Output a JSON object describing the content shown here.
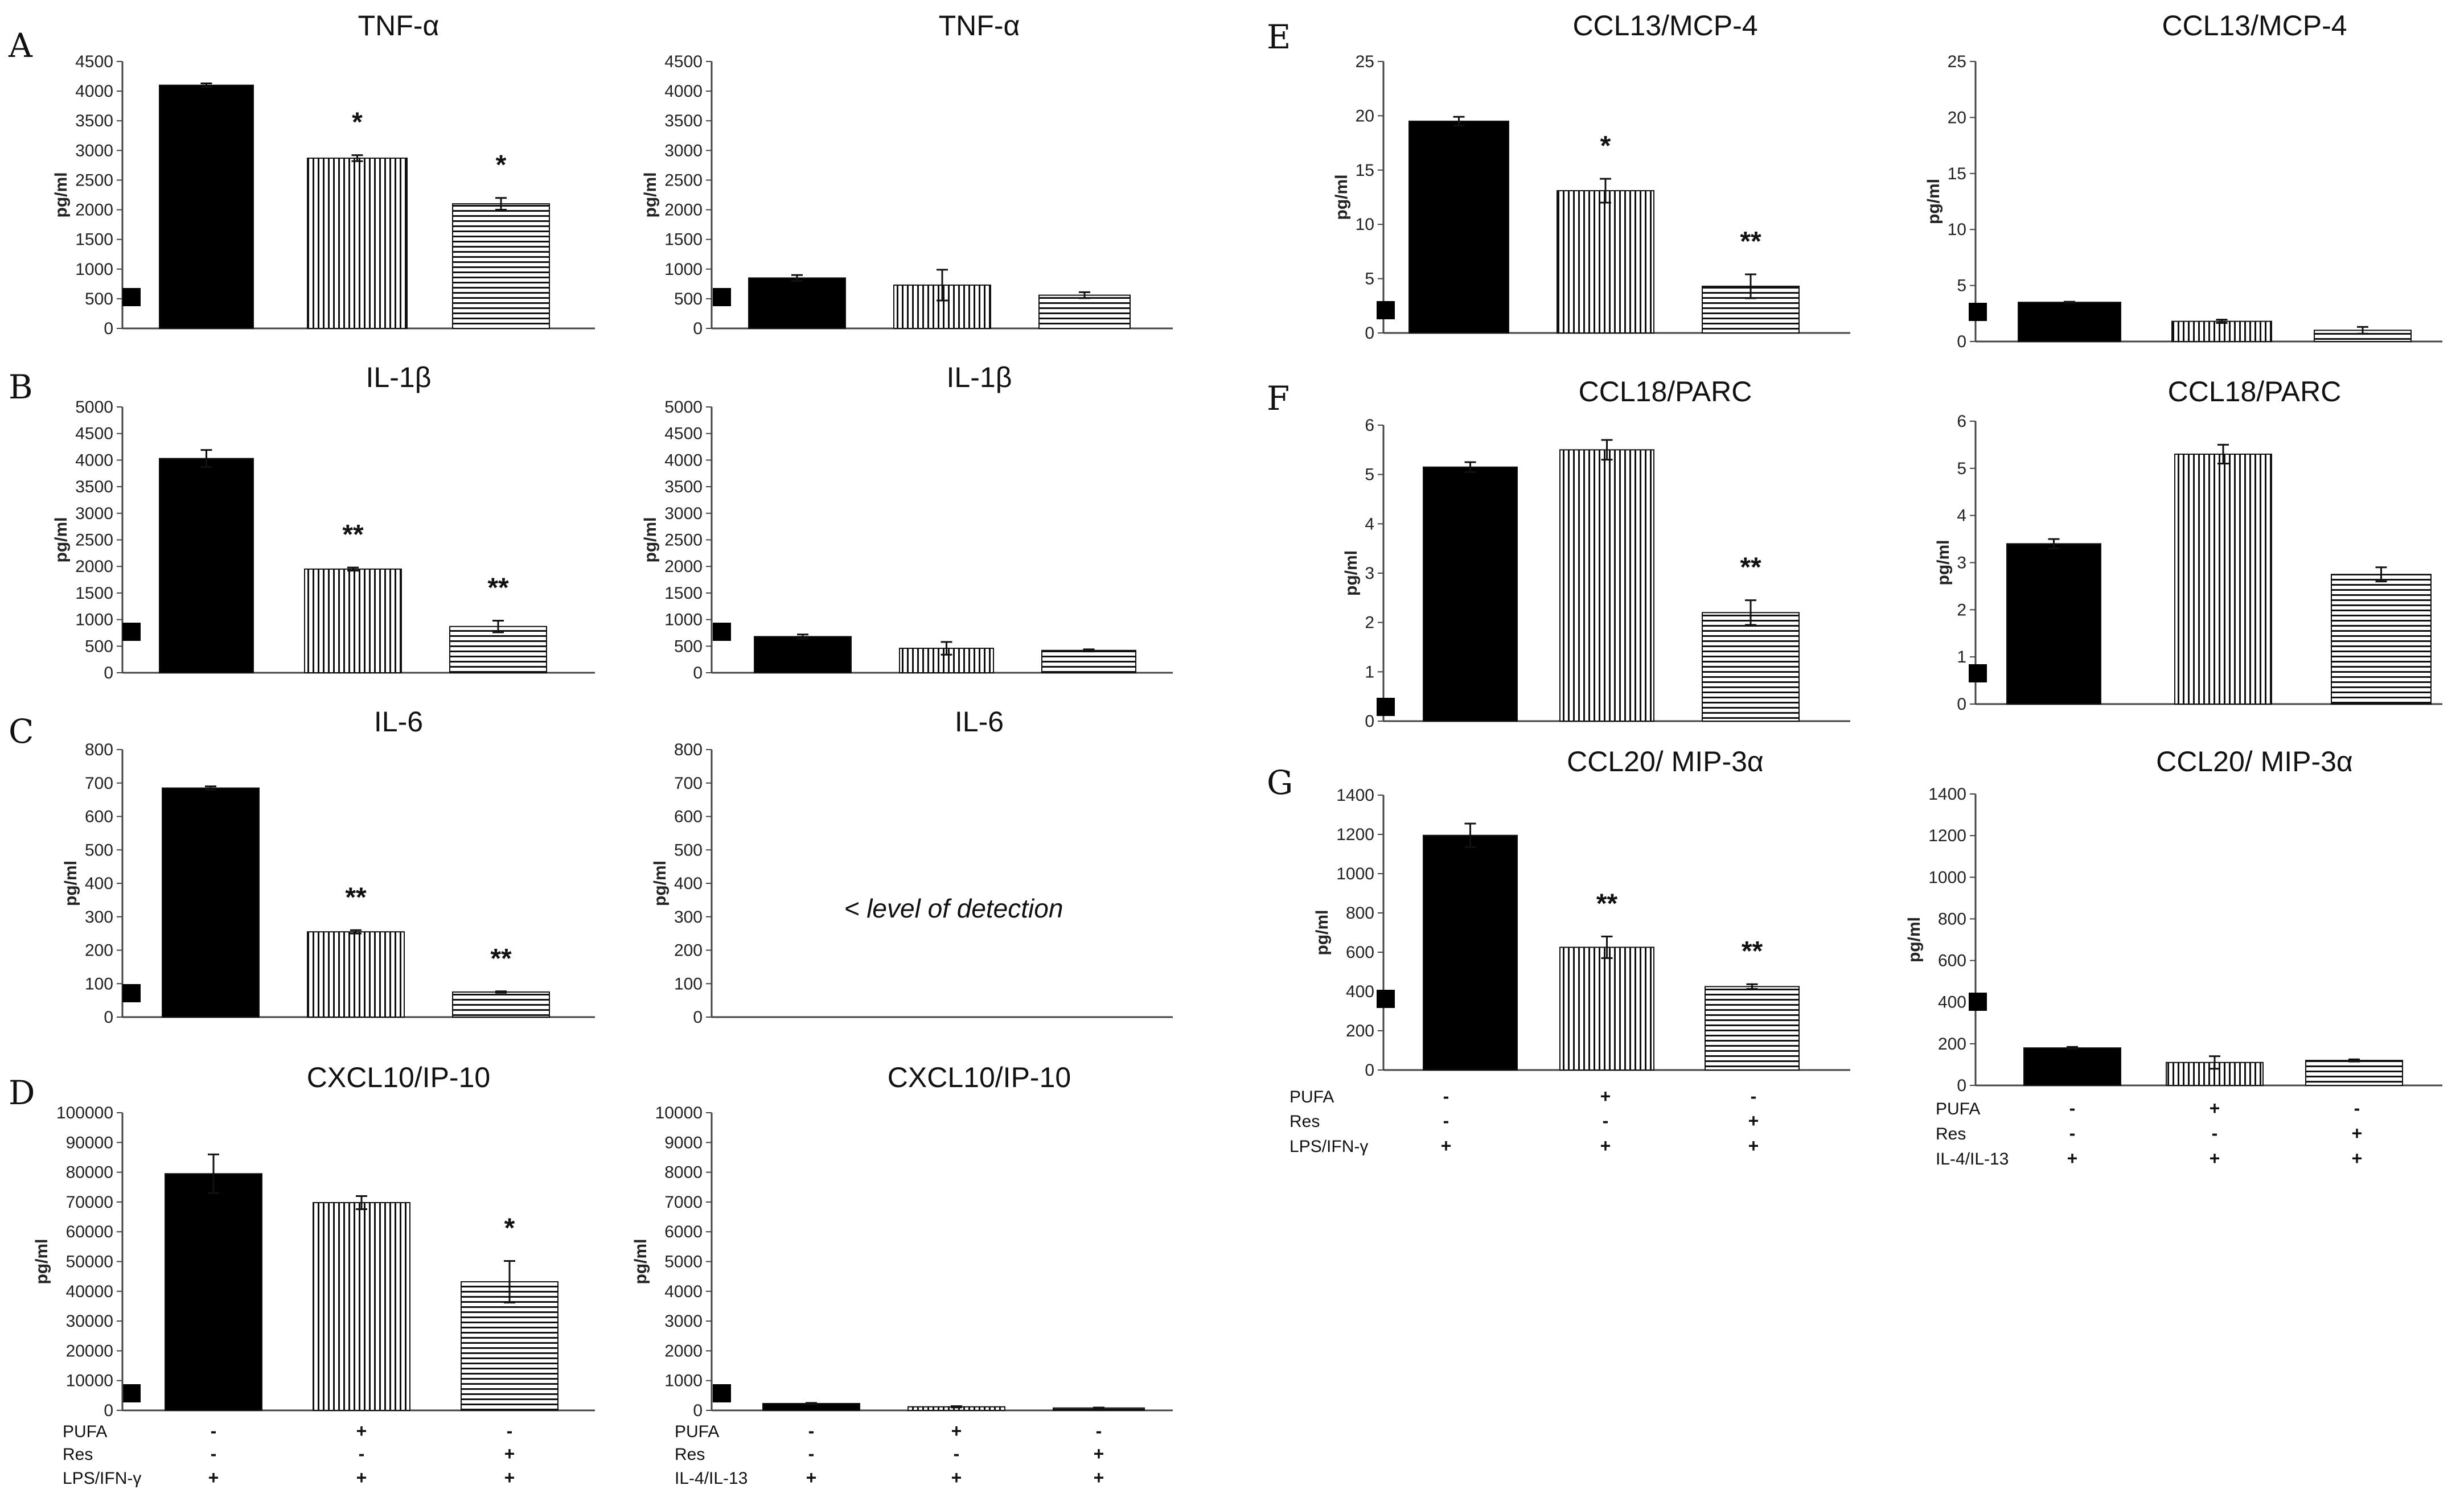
{
  "panels": [
    {
      "letter": "A"
    },
    {
      "letter": "B"
    },
    {
      "letter": "C"
    },
    {
      "letter": "D"
    },
    {
      "letter": "E"
    },
    {
      "letter": "F"
    },
    {
      "letter": "G"
    }
  ],
  "colors": {
    "bar_edge": "#111111",
    "bar_fill": "#000000",
    "background": "#ffffff"
  },
  "patterns": [
    "solid-black",
    "vertical-stripes",
    "horizontal-stripes"
  ],
  "condition_tables": [
    {
      "rows": [
        {
          "label": "PUFA",
          "marks": [
            "-",
            "+",
            "-"
          ]
        },
        {
          "label": "Res",
          "marks": [
            "-",
            "-",
            "+"
          ]
        },
        {
          "label": "LPS/IFN-γ",
          "marks": [
            "+",
            "+",
            "+"
          ]
        }
      ]
    },
    {
      "rows": [
        {
          "label": "PUFA",
          "marks": [
            "-",
            "+",
            "-"
          ]
        },
        {
          "label": "Res",
          "marks": [
            "-",
            "-",
            "+"
          ]
        },
        {
          "label": "IL-4/IL-13",
          "marks": [
            "+",
            "+",
            "+"
          ]
        }
      ]
    },
    {
      "rows": [
        {
          "label": "PUFA",
          "marks": [
            "-",
            "+",
            "-"
          ]
        },
        {
          "label": "Res",
          "marks": [
            "-",
            "-",
            "+"
          ]
        },
        {
          "label": "LPS/IFN-γ",
          "marks": [
            "+",
            "+",
            "+"
          ]
        }
      ]
    },
    {
      "rows": [
        {
          "label": "PUFA",
          "marks": [
            "-",
            "+",
            "-"
          ]
        },
        {
          "label": "Res",
          "marks": [
            "-",
            "-",
            "+"
          ]
        },
        {
          "label": "IL-4/IL-13",
          "marks": [
            "+",
            "+",
            "+"
          ]
        }
      ]
    }
  ],
  "chart_data": [
    {
      "type": "bar",
      "title": "TNF-α",
      "ylabel": "pg/ml",
      "ylim": [
        0,
        4500
      ],
      "yticks": [
        0,
        500,
        1000,
        1500,
        2000,
        2500,
        3000,
        3500,
        4000,
        4500
      ],
      "values": [
        4100,
        2870,
        2100
      ],
      "errors": [
        30,
        50,
        100
      ],
      "significance": [
        "",
        "*",
        "*"
      ],
      "note": ""
    },
    {
      "type": "bar",
      "title": "TNF-α",
      "ylabel": "pg/ml",
      "ylim": [
        0,
        4500
      ],
      "yticks": [
        0,
        500,
        1000,
        1500,
        2000,
        2500,
        3000,
        3500,
        4000,
        4500
      ],
      "values": [
        850,
        730,
        560
      ],
      "errors": [
        50,
        260,
        50
      ],
      "significance": [
        "",
        "",
        ""
      ],
      "note": ""
    },
    {
      "type": "bar",
      "title": "IL-1β",
      "ylabel": "pg/ml",
      "ylim": [
        0,
        5000
      ],
      "yticks": [
        0,
        500,
        1000,
        1500,
        2000,
        2500,
        3000,
        3500,
        4000,
        4500,
        5000
      ],
      "values": [
        4030,
        1950,
        870
      ],
      "errors": [
        160,
        30,
        110
      ],
      "significance": [
        "",
        "**",
        "**"
      ],
      "note": ""
    },
    {
      "type": "bar",
      "title": "IL-1β",
      "ylabel": "pg/ml",
      "ylim": [
        0,
        5000
      ],
      "yticks": [
        0,
        500,
        1000,
        1500,
        2000,
        2500,
        3000,
        3500,
        4000,
        4500,
        5000
      ],
      "values": [
        680,
        460,
        420
      ],
      "errors": [
        40,
        120,
        20
      ],
      "significance": [
        "",
        "",
        ""
      ],
      "note": ""
    },
    {
      "type": "bar",
      "title": "IL-6",
      "ylabel": "pg/ml",
      "ylim": [
        0,
        800
      ],
      "yticks": [
        0,
        100,
        200,
        300,
        400,
        500,
        600,
        700,
        800
      ],
      "values": [
        685,
        255,
        75
      ],
      "errors": [
        5,
        5,
        2
      ],
      "significance": [
        "",
        "**",
        "**"
      ],
      "note": ""
    },
    {
      "type": "bar",
      "title": "IL-6",
      "ylabel": "pg/ml",
      "ylim": [
        0,
        800
      ],
      "yticks": [
        0,
        100,
        200,
        300,
        400,
        500,
        600,
        700,
        800
      ],
      "values": [],
      "errors": [],
      "significance": [],
      "note": "< level of detection"
    },
    {
      "type": "bar",
      "title": "CXCL10/IP-10",
      "ylabel": "pg/ml",
      "ylim": [
        0,
        100000
      ],
      "yticks": [
        0,
        10000,
        20000,
        30000,
        40000,
        50000,
        60000,
        70000,
        80000,
        90000,
        100000
      ],
      "values": [
        79500,
        69800,
        43200
      ],
      "errors": [
        6500,
        2200,
        7000
      ],
      "significance": [
        "",
        "",
        "*"
      ],
      "note": ""
    },
    {
      "type": "bar",
      "title": "CXCL10/IP-10",
      "ylabel": "pg/ml",
      "ylim": [
        0,
        10000
      ],
      "yticks": [
        0,
        1000,
        2000,
        3000,
        4000,
        5000,
        6000,
        7000,
        8000,
        9000,
        10000
      ],
      "values": [
        230,
        120,
        80
      ],
      "errors": [
        20,
        20,
        15
      ],
      "significance": [
        "",
        "",
        ""
      ],
      "note": ""
    },
    {
      "type": "bar",
      "title": "CCL13/MCP-4",
      "ylabel": "pg/ml",
      "ylim": [
        0,
        25
      ],
      "yticks": [
        0,
        5,
        10,
        15,
        20,
        25
      ],
      "values": [
        19.5,
        13.1,
        4.3
      ],
      "errors": [
        0.4,
        1.1,
        1.1
      ],
      "significance": [
        "",
        "*",
        "**"
      ],
      "note": ""
    },
    {
      "type": "bar",
      "title": "CCL13/MCP-4",
      "ylabel": "pg/ml",
      "ylim": [
        0,
        25
      ],
      "yticks": [
        0,
        5,
        10,
        15,
        20,
        25
      ],
      "values": [
        3.5,
        1.8,
        1.0
      ],
      "errors": [
        0.05,
        0.15,
        0.3
      ],
      "significance": [
        "",
        "",
        ""
      ],
      "note": ""
    },
    {
      "type": "bar",
      "title": "CCL18/PARC",
      "ylabel": "pg/ml",
      "ylim": [
        0,
        6
      ],
      "yticks": [
        0,
        1,
        2,
        3,
        4,
        5,
        6
      ],
      "values": [
        5.15,
        5.5,
        2.2
      ],
      "errors": [
        0.1,
        0.2,
        0.25
      ],
      "significance": [
        "",
        "",
        "**"
      ],
      "note": ""
    },
    {
      "type": "bar",
      "title": "CCL18/PARC",
      "ylabel": "pg/ml",
      "ylim": [
        0,
        6
      ],
      "yticks": [
        0,
        1,
        2,
        3,
        4,
        5,
        6
      ],
      "values": [
        3.4,
        5.3,
        2.75
      ],
      "errors": [
        0.1,
        0.2,
        0.15
      ],
      "significance": [
        "",
        "",
        ""
      ],
      "note": ""
    },
    {
      "type": "bar",
      "title": "CCL20/ MIP-3α",
      "ylabel": "pg/ml",
      "ylim": [
        0,
        1400
      ],
      "yticks": [
        0,
        200,
        400,
        600,
        800,
        1000,
        1200,
        1400
      ],
      "values": [
        1195,
        625,
        425
      ],
      "errors": [
        60,
        55,
        12
      ],
      "significance": [
        "",
        "**",
        "**"
      ],
      "note": ""
    },
    {
      "type": "bar",
      "title": "CCL20/ MIP-3α",
      "ylabel": "pg/ml",
      "ylim": [
        0,
        1400
      ],
      "yticks": [
        0,
        200,
        400,
        600,
        800,
        1000,
        1200,
        1400
      ],
      "values": [
        180,
        110,
        120
      ],
      "errors": [
        5,
        30,
        5
      ],
      "significance": [
        "",
        "",
        ""
      ],
      "note": ""
    }
  ]
}
